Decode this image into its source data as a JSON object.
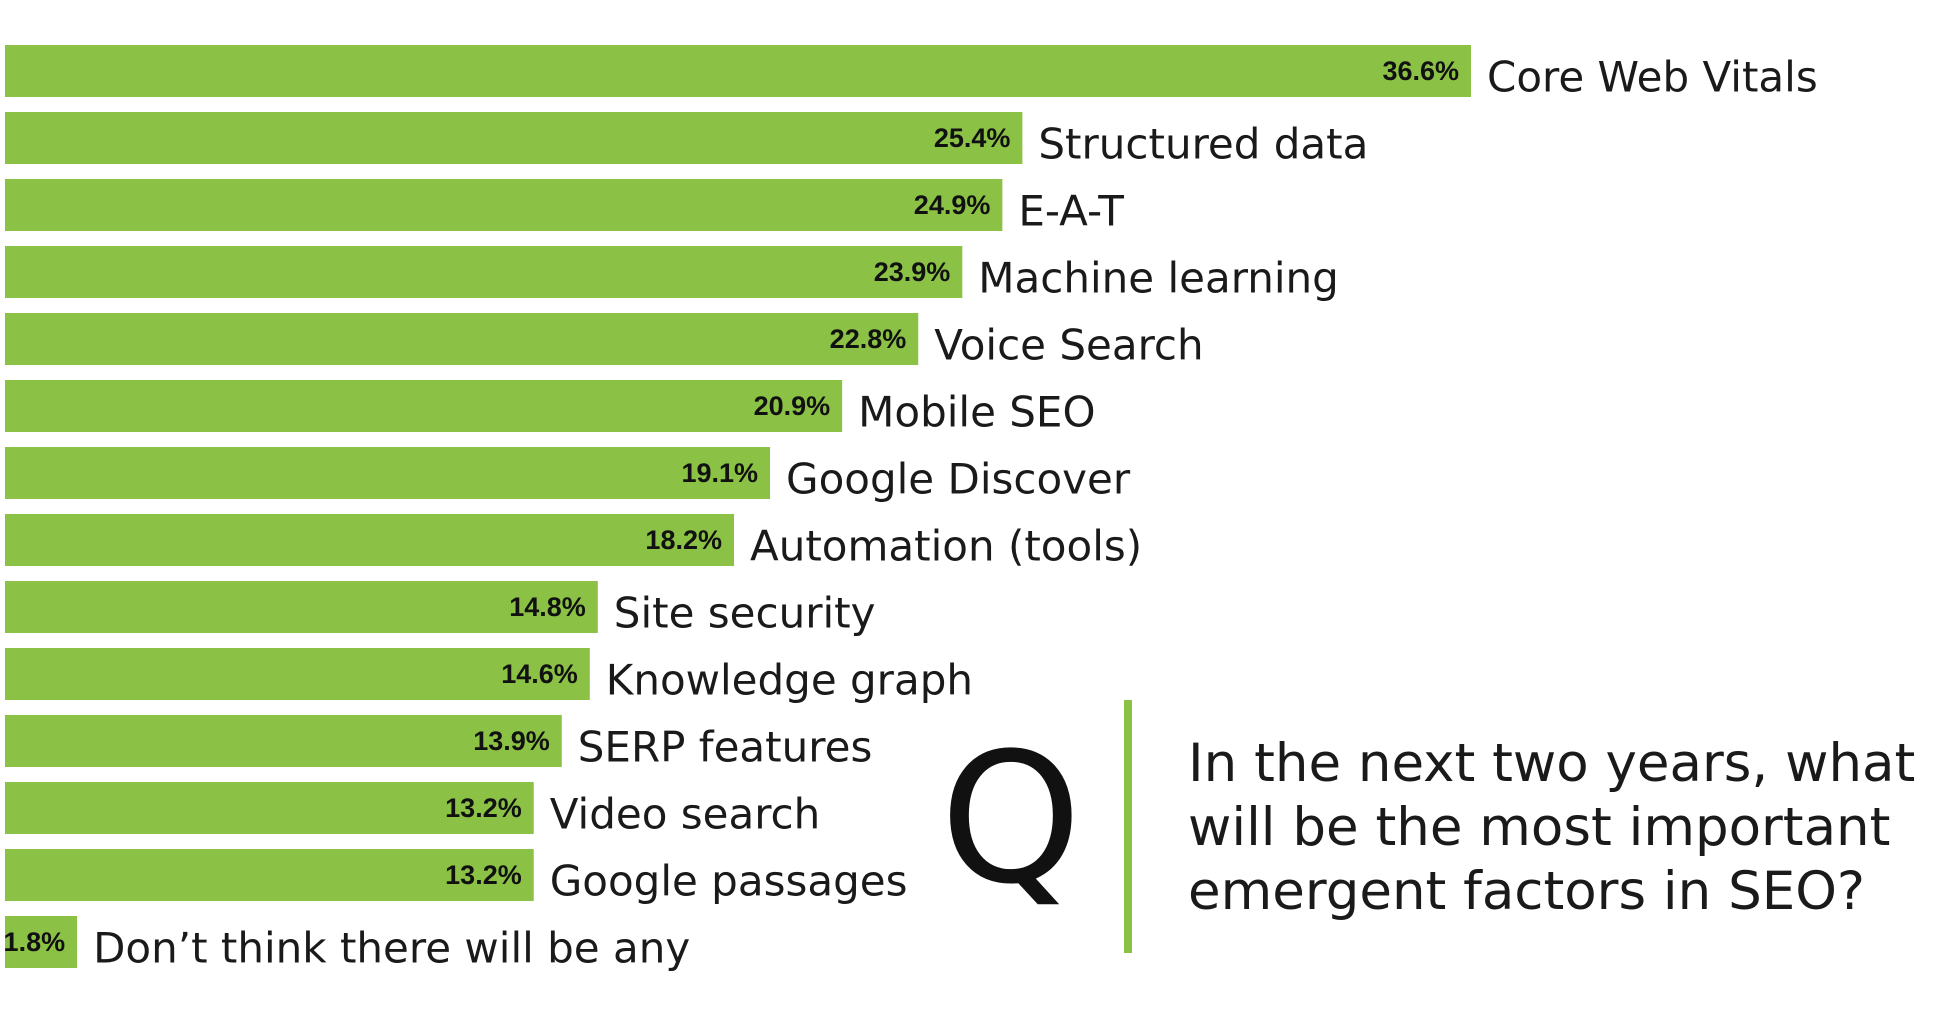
{
  "chart_data": {
    "type": "bar",
    "orientation": "horizontal",
    "categories": [
      "Core Web Vitals",
      "Structured data",
      "E-A-T",
      "Machine learning",
      "Voice Search",
      "Mobile SEO",
      "Google Discover",
      "Automation (tools)",
      "Site security",
      "Knowledge graph",
      "SERP features",
      "Video search",
      "Google passages",
      "Don’t think there will be any"
    ],
    "values": [
      36.6,
      25.4,
      24.9,
      23.9,
      22.8,
      20.9,
      19.1,
      18.2,
      14.8,
      14.6,
      13.9,
      13.2,
      13.2,
      1.8
    ],
    "value_labels": [
      "36.6%",
      "25.4%",
      "24.9%",
      "23.9%",
      "22.8%",
      "20.9%",
      "19.1%",
      "18.2%",
      "14.8%",
      "14.6%",
      "13.9%",
      "13.2%",
      "13.2%",
      "1.8%"
    ],
    "title": "",
    "xlabel": "",
    "ylabel": "",
    "grid": false,
    "bar_color": "#8bc145"
  },
  "question": {
    "letter": "Q",
    "text": "In the next two years, what will be the most important emergent factors in SEO?",
    "accent_color": "#8bc145"
  }
}
